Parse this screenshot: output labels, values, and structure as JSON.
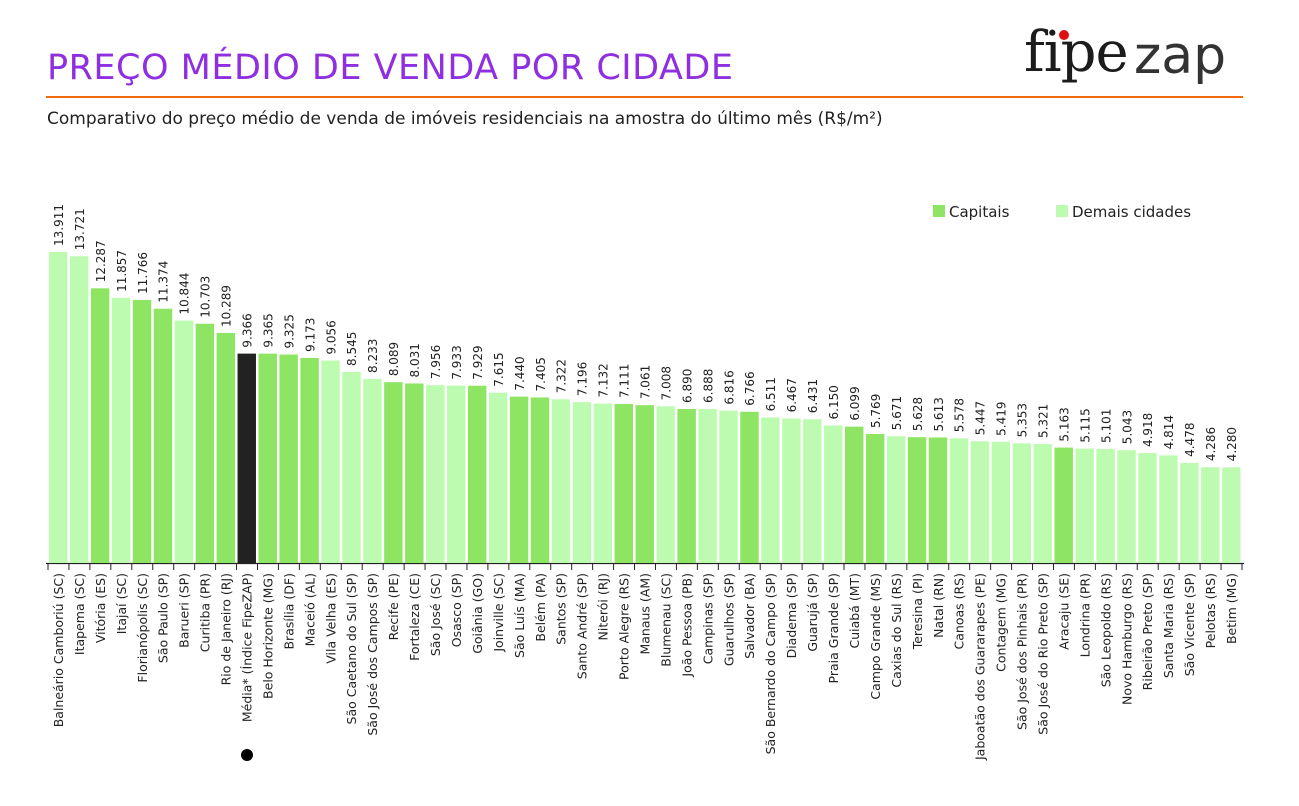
{
  "header": {
    "title": "PREÇO MÉDIO DE VENDA POR CIDADE",
    "subtitle": "Comparativo do preço médio de venda de imóveis residenciais na amostra do último mês (R$/m²)",
    "logo_text": "fipezap"
  },
  "colors": {
    "title": "#8f2fe0",
    "rule": "#f26a10",
    "capitais": "#8ee563",
    "demais": "#bdfcb0",
    "media": "#222222"
  },
  "chart_data": {
    "type": "bar",
    "title": "PREÇO MÉDIO DE VENDA POR CIDADE",
    "subtitle": "Comparativo do preço médio de venda de imóveis residenciais na amostra do último mês (R$/m²)",
    "xlabel": "",
    "ylabel": "",
    "ylim": [
      0,
      14000
    ],
    "grid": false,
    "legend": {
      "placement": "top-right",
      "entries": [
        "Capitais",
        "Demais cidades"
      ]
    },
    "categories": [
      "Balneário Camboriú (SC)",
      "Itapema (SC)",
      "Vitória (ES)",
      "Itajaí (SC)",
      "Florianópolis (SC)",
      "São Paulo (SP)",
      "Barueri (SP)",
      "Curitiba (PR)",
      "Rio de Janeiro (RJ)",
      "Média* (Índice FipeZAP)",
      "Belo Horizonte (MG)",
      "Brasília (DF)",
      "Maceió (AL)",
      "Vila Velha (ES)",
      "São Caetano do Sul (SP)",
      "São José dos Campos (SP)",
      "Recife (PE)",
      "Fortaleza (CE)",
      "São José (SC)",
      "Osasco (SP)",
      "Goiânia (GO)",
      "Joinville (SC)",
      "São Luís (MA)",
      "Belém (PA)",
      "Santos (SP)",
      "Santo André (SP)",
      "Niterói (RJ)",
      "Porto Alegre (RS)",
      "Manaus (AM)",
      "Blumenau (SC)",
      "João Pessoa (PB)",
      "Campinas (SP)",
      "Guarulhos (SP)",
      "Salvador (BA)",
      "São Bernardo do Campo (SP)",
      "Diadema (SP)",
      "Guarujá (SP)",
      "Praia Grande (SP)",
      "Cuiabá (MT)",
      "Campo Grande (MS)",
      "Caxias do Sul (RS)",
      "Teresina (PI)",
      "Natal (RN)",
      "Canoas (RS)",
      "Jaboatão dos Guararapes (PE)",
      "Contagem (MG)",
      "São José dos Pinhais (PR)",
      "São José do Rio Preto (SP)",
      "Aracaju (SE)",
      "Londrina (PR)",
      "São Leopoldo (RS)",
      "Novo Hamburgo (RS)",
      "Ribeirão Preto (SP)",
      "Santa Maria (RS)",
      "São Vicente (SP)",
      "Pelotas (RS)",
      "Betim (MG)"
    ],
    "values": [
      13911,
      13721,
      12287,
      11857,
      11766,
      11374,
      10844,
      10703,
      10289,
      9366,
      9365,
      9325,
      9173,
      9056,
      8545,
      8233,
      8089,
      8031,
      7956,
      7933,
      7929,
      7615,
      7440,
      7405,
      7322,
      7196,
      7132,
      7111,
      7061,
      7008,
      6890,
      6888,
      6816,
      6766,
      6511,
      6467,
      6431,
      6150,
      6099,
      5769,
      5671,
      5628,
      5613,
      5578,
      5447,
      5419,
      5353,
      5321,
      5163,
      5115,
      5101,
      5043,
      4918,
      4814,
      4478,
      4286,
      4280
    ],
    "groups": [
      "Demais cidades",
      "Demais cidades",
      "Capitais",
      "Demais cidades",
      "Capitais",
      "Capitais",
      "Demais cidades",
      "Capitais",
      "Capitais",
      "Média",
      "Capitais",
      "Capitais",
      "Capitais",
      "Demais cidades",
      "Demais cidades",
      "Demais cidades",
      "Capitais",
      "Capitais",
      "Demais cidades",
      "Demais cidades",
      "Capitais",
      "Demais cidades",
      "Capitais",
      "Capitais",
      "Demais cidades",
      "Demais cidades",
      "Demais cidades",
      "Capitais",
      "Capitais",
      "Demais cidades",
      "Capitais",
      "Demais cidades",
      "Demais cidades",
      "Capitais",
      "Demais cidades",
      "Demais cidades",
      "Demais cidades",
      "Demais cidades",
      "Capitais",
      "Capitais",
      "Demais cidades",
      "Capitais",
      "Capitais",
      "Demais cidades",
      "Demais cidades",
      "Demais cidades",
      "Demais cidades",
      "Demais cidades",
      "Capitais",
      "Demais cidades",
      "Demais cidades",
      "Demais cidades",
      "Demais cidades",
      "Demais cidades",
      "Demais cidades",
      "Demais cidades",
      "Demais cidades"
    ]
  }
}
